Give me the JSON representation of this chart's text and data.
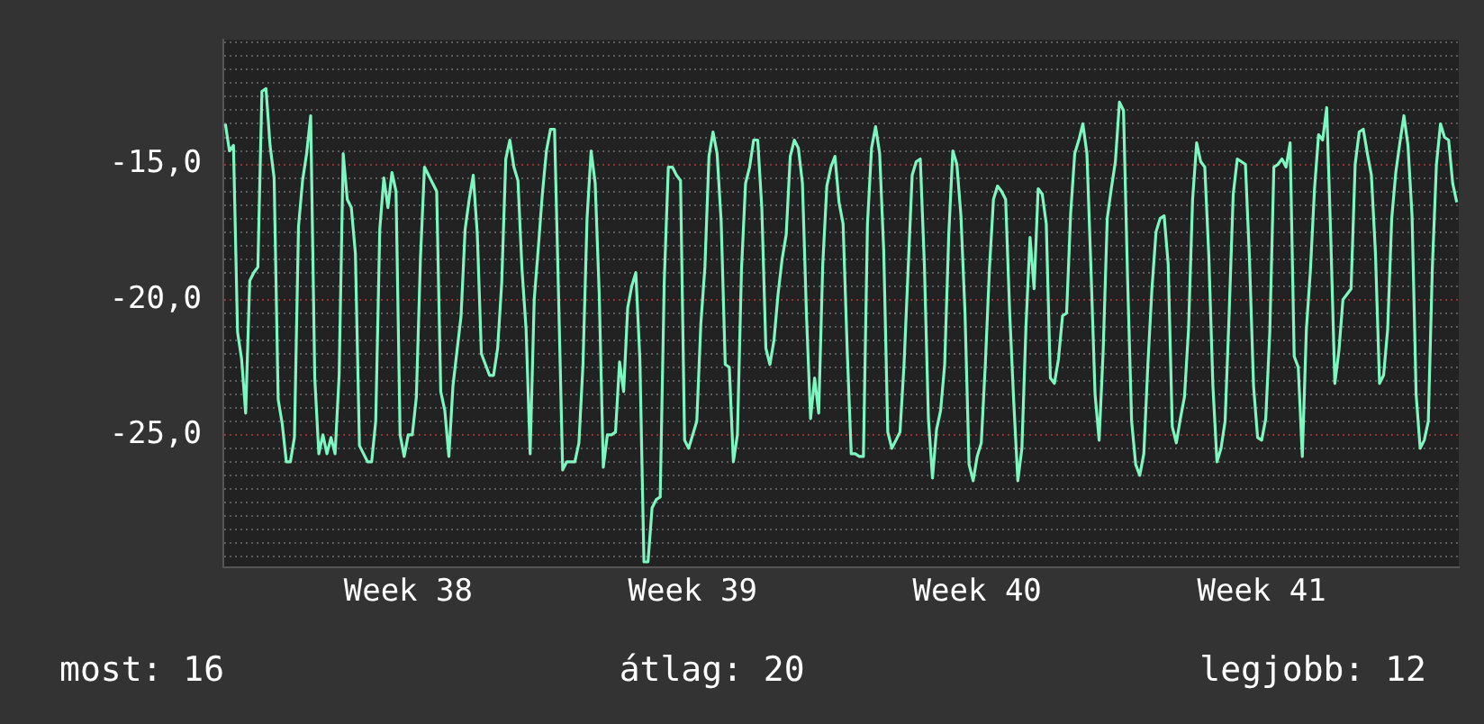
{
  "chart_data": {
    "type": "line",
    "ylim": [
      -29.9,
      -10.4
    ],
    "categories": [
      null,
      null,
      null,
      null,
      null,
      null,
      null,
      null,
      null,
      null,
      null,
      null,
      null,
      null,
      null,
      null,
      null,
      null,
      null,
      null,
      null,
      null,
      null,
      null,
      null,
      null,
      null,
      null,
      null,
      null,
      null,
      null,
      null,
      null,
      null,
      null,
      null,
      null,
      null,
      null,
      null,
      null,
      null,
      null,
      null,
      "Week 38",
      null,
      null,
      null,
      null,
      null,
      null,
      null,
      null,
      null,
      null,
      null,
      null,
      null,
      null,
      null,
      null,
      null,
      null,
      null,
      null,
      null,
      null,
      null,
      null,
      null,
      null,
      null,
      null,
      null,
      null,
      null,
      null,
      null,
      null,
      null,
      null,
      null,
      null,
      null,
      null,
      null,
      null,
      null,
      null,
      null,
      null,
      null,
      null,
      null,
      null,
      null,
      null,
      null,
      null,
      null,
      null,
      null,
      null,
      null,
      null,
      null,
      null,
      null,
      null,
      null,
      null,
      null,
      null,
      null,
      "Week 39",
      null,
      null,
      null,
      null,
      null,
      null,
      null,
      null,
      null,
      null,
      null,
      null,
      null,
      null,
      null,
      null,
      null,
      null,
      null,
      null,
      null,
      null,
      null,
      null,
      null,
      null,
      null,
      null,
      null,
      null,
      null,
      null,
      null,
      null,
      null,
      null,
      null,
      null,
      null,
      null,
      null,
      null,
      null,
      null,
      null,
      null,
      null,
      null,
      null,
      null,
      null,
      null,
      null,
      null,
      null,
      null,
      null,
      null,
      null,
      null,
      null,
      null,
      null,
      null,
      null,
      null,
      null,
      null,
      null,
      "Week 40",
      null,
      null,
      null,
      null,
      null,
      null,
      null,
      null,
      null,
      null,
      null,
      null,
      null,
      null,
      null,
      null,
      null,
      null,
      null,
      null,
      null,
      null,
      null,
      null,
      null,
      null,
      null,
      null,
      null,
      null,
      null,
      null,
      null,
      null,
      null,
      null,
      null,
      null,
      null,
      null,
      null,
      null,
      null,
      null,
      null,
      null,
      null,
      null,
      null,
      null,
      null,
      null,
      null,
      null,
      null,
      null,
      null,
      null,
      null,
      null,
      null,
      null,
      null,
      null,
      null,
      null,
      null,
      null,
      null,
      "Week 41",
      null,
      null,
      null,
      null,
      null,
      null,
      null,
      null,
      null,
      null,
      null,
      null,
      null,
      null,
      null,
      null,
      null,
      null,
      null,
      null,
      null,
      null,
      null,
      null,
      null,
      null,
      null,
      null,
      null,
      null,
      null,
      null,
      null,
      null,
      null,
      null,
      null,
      null,
      null,
      null,
      null,
      null,
      null,
      null,
      null,
      null,
      null,
      null
    ],
    "yticks": [
      {
        "value": -15,
        "label": "-15,0"
      },
      {
        "value": -20,
        "label": "-20,0"
      },
      {
        "value": -25,
        "label": "-25,0"
      },
      {
        "value": -29.5,
        "label": null
      },
      {
        "value": -29,
        "label": null
      },
      {
        "value": -28.5,
        "label": null
      },
      {
        "value": -28,
        "label": null
      },
      {
        "value": -27.5,
        "label": null
      },
      {
        "value": -27,
        "label": null
      },
      {
        "value": -26.5,
        "label": null
      },
      {
        "value": -26,
        "label": null
      },
      {
        "value": -25.5,
        "label": null
      },
      {
        "value": -24.5,
        "label": null
      },
      {
        "value": -24,
        "label": null
      },
      {
        "value": -23.5,
        "label": null
      },
      {
        "value": -23,
        "label": null
      },
      {
        "value": -22.5,
        "label": null
      },
      {
        "value": -22,
        "label": null
      },
      {
        "value": -21.5,
        "label": null
      },
      {
        "value": -21,
        "label": null
      },
      {
        "value": -20.5,
        "label": null
      },
      {
        "value": -19.5,
        "label": null
      },
      {
        "value": -19,
        "label": null
      },
      {
        "value": -18.5,
        "label": null
      },
      {
        "value": -18,
        "label": null
      },
      {
        "value": -17.5,
        "label": null
      },
      {
        "value": -17,
        "label": null
      },
      {
        "value": -16.5,
        "label": null
      },
      {
        "value": -16,
        "label": null
      },
      {
        "value": -15.5,
        "label": null
      },
      {
        "value": -14.5,
        "label": null
      },
      {
        "value": -14,
        "label": null
      },
      {
        "value": -13.5,
        "label": null
      },
      {
        "value": -13,
        "label": null
      },
      {
        "value": -12.5,
        "label": null
      },
      {
        "value": -12,
        "label": null
      },
      {
        "value": -11.5,
        "label": null
      },
      {
        "value": -11,
        "label": null
      },
      {
        "value": -10.5,
        "label": null
      }
    ],
    "grid": "y",
    "legend": false,
    "marker": "none",
    "line_style": "solid",
    "annotations": [
      "most: 16",
      "átlag: 20",
      "legjobb: 12"
    ],
    "series": [
      {
        "color": "#7df7bf",
        "values": [
          -13.5,
          -14.5,
          -14.3,
          -21.2,
          -22.2,
          -24.2,
          -19.3,
          -19.0,
          -18.8,
          -12.3,
          -12.2,
          -14.3,
          -15.5,
          -23.7,
          -24.6,
          -26.0,
          -26.0,
          -25.1,
          -17.3,
          -15.6,
          -14.6,
          -13.2,
          -22.9,
          -25.7,
          -25.0,
          -25.7,
          -25.1,
          -25.7,
          -22.8,
          -14.6,
          -16.3,
          -16.6,
          -18.3,
          -25.4,
          -25.7,
          -26.0,
          -26.0,
          -24.5,
          -17.4,
          -15.5,
          -16.6,
          -15.3,
          -16.0,
          -25.0,
          -25.8,
          -25.0,
          -25.0,
          -23.6,
          -18.5,
          -15.1,
          -15.4,
          -15.7,
          -16.0,
          -23.4,
          -24.1,
          -25.8,
          -23.2,
          -21.9,
          -20.6,
          -17.4,
          -16.3,
          -15.4,
          -17.6,
          -22.0,
          -22.4,
          -22.8,
          -22.8,
          -21.8,
          -19.4,
          -14.8,
          -14.1,
          -15.1,
          -15.6,
          -18.9,
          -21.1,
          -25.7,
          -20.0,
          -18.1,
          -16.1,
          -14.5,
          -13.7,
          -13.7,
          -19.9,
          -26.3,
          -26.0,
          -26.0,
          -26.0,
          -25.3,
          -22.4,
          -17.0,
          -14.5,
          -15.7,
          -19.8,
          -26.2,
          -25.0,
          -25.0,
          -24.9,
          -22.3,
          -23.4,
          -20.3,
          -19.5,
          -19.0,
          -22.2,
          -29.7,
          -29.7,
          -27.7,
          -27.4,
          -27.3,
          -19.3,
          -15.1,
          -15.1,
          -15.4,
          -15.6,
          -25.2,
          -25.5,
          -25.0,
          -24.5,
          -20.9,
          -18.8,
          -14.7,
          -13.8,
          -14.6,
          -17.1,
          -22.4,
          -22.5,
          -26.0,
          -25.0,
          -18.9,
          -15.7,
          -15.1,
          -14.1,
          -14.1,
          -16.6,
          -21.8,
          -22.4,
          -21.5,
          -19.8,
          -18.5,
          -17.6,
          -14.7,
          -14.1,
          -14.4,
          -15.7,
          -20.6,
          -24.4,
          -22.9,
          -24.2,
          -18.7,
          -15.8,
          -15.1,
          -14.7,
          -16.4,
          -17.2,
          -21.8,
          -25.7,
          -25.7,
          -25.8,
          -25.8,
          -17.2,
          -14.4,
          -13.6,
          -14.6,
          -18.2,
          -24.9,
          -25.5,
          -25.2,
          -24.9,
          -22.4,
          -18.9,
          -15.4,
          -14.9,
          -14.8,
          -18.7,
          -24.4,
          -26.6,
          -24.8,
          -24.1,
          -22.4,
          -17.6,
          -14.5,
          -15.0,
          -16.9,
          -20.5,
          -26.1,
          -26.7,
          -25.8,
          -25.3,
          -22.4,
          -18.9,
          -16.3,
          -15.8,
          -16.0,
          -16.3,
          -20.5,
          -23.8,
          -26.7,
          -25.5,
          -21.0,
          -17.7,
          -19.6,
          -15.9,
          -16.1,
          -17.2,
          -22.9,
          -23.1,
          -22.2,
          -20.6,
          -20.5,
          -16.8,
          -14.6,
          -14.1,
          -13.5,
          -14.6,
          -18.9,
          -23.5,
          -25.2,
          -21.9,
          -17.0,
          -15.9,
          -14.9,
          -12.7,
          -13.0,
          -19.2,
          -24.5,
          -26.1,
          -26.5,
          -25.7,
          -22.4,
          -19.6,
          -17.5,
          -17.0,
          -16.9,
          -18.7,
          -24.7,
          -25.3,
          -24.4,
          -23.6,
          -21.1,
          -16.3,
          -14.2,
          -14.9,
          -15.1,
          -18.4,
          -23.2,
          -26.0,
          -25.5,
          -24.5,
          -20.5,
          -16.1,
          -14.8,
          -14.9,
          -15.0,
          -18.5,
          -23.2,
          -25.1,
          -25.2,
          -24.4,
          -21.2,
          -15.1,
          -15.0,
          -14.8,
          -15.1,
          -14.2,
          -22.1,
          -22.5,
          -25.8,
          -21.1,
          -18.9,
          -15.9,
          -13.9,
          -14.1,
          -12.9,
          -17.7,
          -23.1,
          -21.9,
          -20.0,
          -19.8,
          -19.6,
          -15.0,
          -13.8,
          -13.7,
          -14.6,
          -15.4,
          -18.3,
          -23.1,
          -22.8,
          -21.1,
          -17.0,
          -15.3,
          -14.2,
          -13.2,
          -14.3,
          -16.9,
          -23.5,
          -25.5,
          -25.2,
          -24.5,
          -18.8,
          -15.0,
          -13.5,
          -14.0,
          -14.1,
          -15.7,
          -16.4
        ]
      }
    ]
  }
}
